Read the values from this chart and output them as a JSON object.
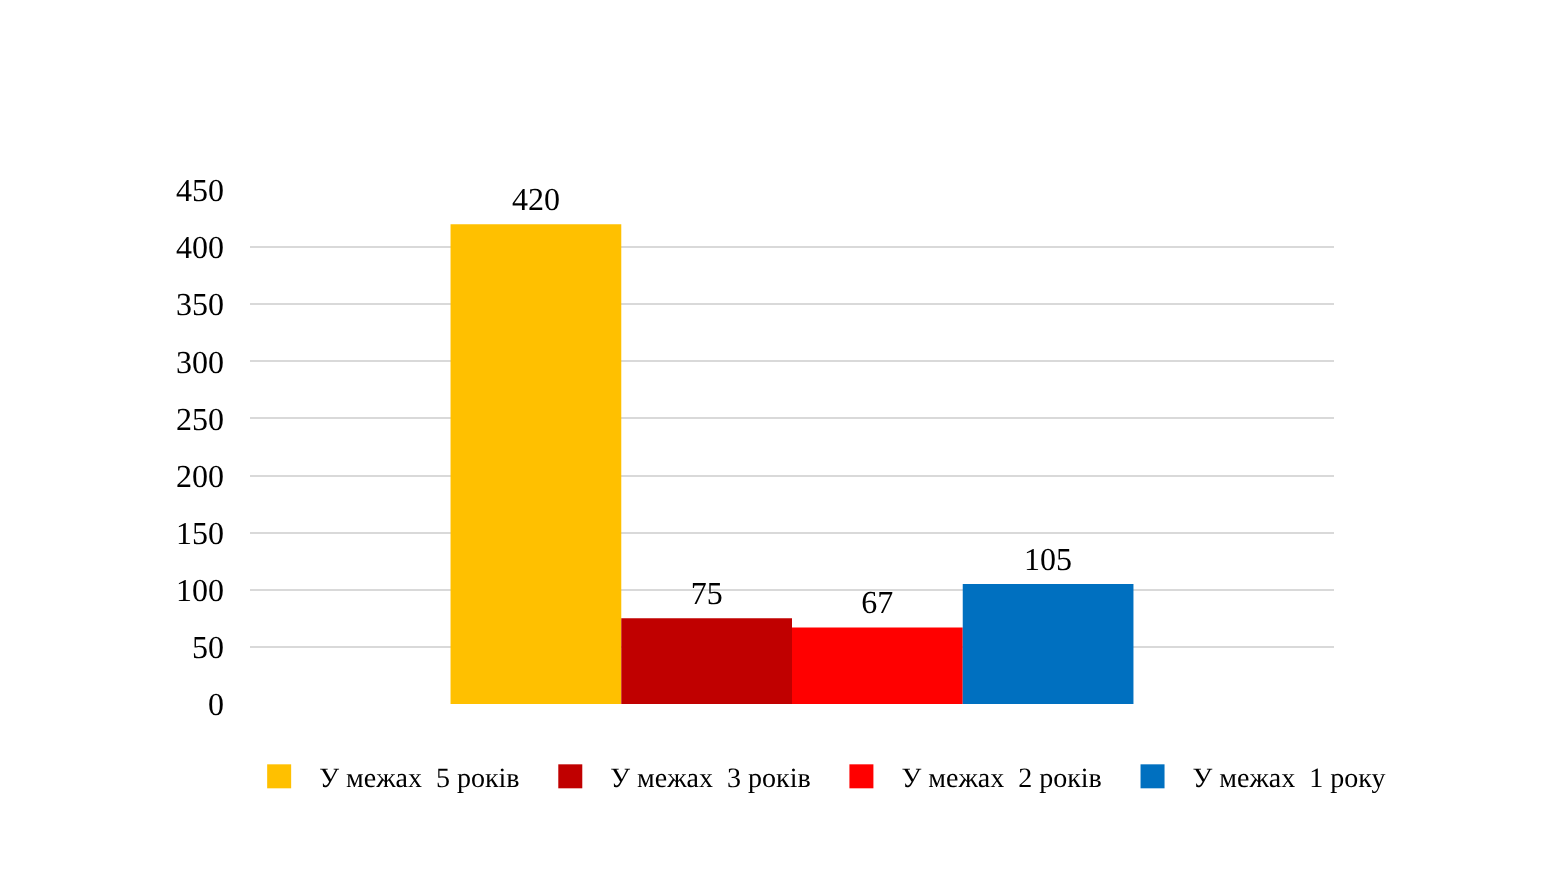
{
  "chart_data": {
    "type": "bar",
    "categories": [
      null
    ],
    "series": [
      {
        "name": "У межах  5 років",
        "color": "#ffc000",
        "values": [
          420
        ]
      },
      {
        "name": "У межах  3 років",
        "color": "#c00000",
        "values": [
          75
        ]
      },
      {
        "name": "У межах  2 років",
        "color": "#ff0000",
        "values": [
          67
        ]
      },
      {
        "name": "У межах  1 року",
        "color": "#0070c0",
        "values": [
          105
        ]
      }
    ],
    "ylim": [
      0,
      450
    ],
    "yticks": [
      0,
      50,
      100,
      150,
      200,
      250,
      300,
      350,
      400,
      450
    ],
    "grid": "y",
    "legend": "bottom",
    "tick_labels": "y",
    "data_labels": true
  }
}
